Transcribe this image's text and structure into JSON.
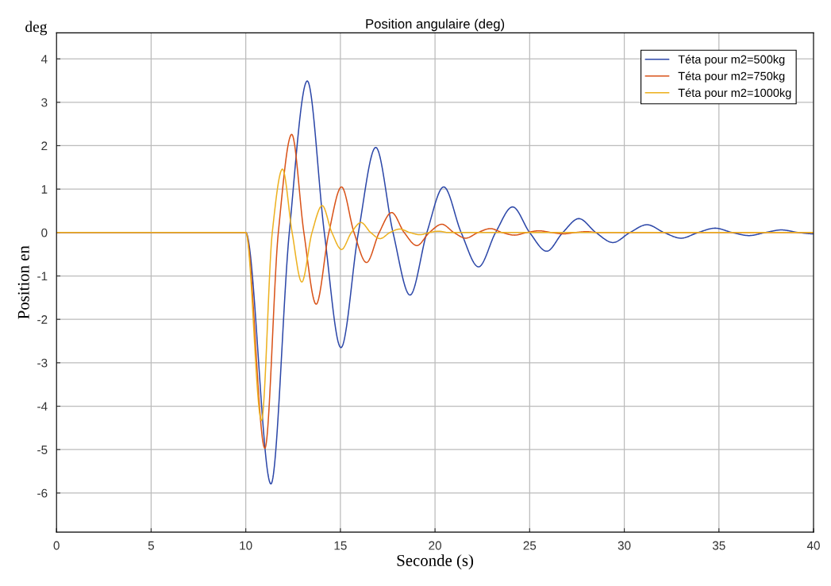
{
  "chart_data": {
    "type": "line",
    "title": "Position angulaire (deg)",
    "xlabel": "Seconde (s)",
    "ylabel": "Position en",
    "annotations": [
      "deg"
    ],
    "xlim": [
      0,
      40
    ],
    "xticks": [
      0,
      5,
      10,
      15,
      20,
      25,
      30,
      35,
      40
    ],
    "ylim": [
      -6.9,
      4.6
    ],
    "yticks": [
      -6,
      -5,
      -4,
      -3,
      -2,
      -1,
      0,
      1,
      2,
      3,
      4
    ],
    "grid": true,
    "legend": "top right",
    "marker": "none",
    "line_style": "solid",
    "series": [
      {
        "name": "Téta pour m2=500kg",
        "color": "#2c47a8",
        "x": [
          0,
          10,
          11.33,
          12.3,
          13.25,
          14.15,
          15.03,
          15.95,
          16.87,
          17.78,
          18.68,
          19.57,
          20.46,
          21.38,
          22.3,
          23.2,
          24.1,
          25.0,
          25.9,
          26.75,
          27.6,
          28.5,
          29.4,
          30.3,
          31.2,
          32.1,
          33.0,
          33.9,
          34.8,
          35.7,
          36.6,
          37.45,
          38.3,
          39.2,
          40
        ],
        "values": [
          0,
          0,
          -5.79,
          0,
          3.49,
          0,
          -2.65,
          0,
          1.96,
          0,
          -1.44,
          0,
          1.05,
          0,
          -0.79,
          0,
          0.59,
          0,
          -0.43,
          0,
          0.32,
          0,
          -0.23,
          0,
          0.18,
          0,
          -0.13,
          0,
          0.1,
          0,
          -0.07,
          0,
          0.06,
          0,
          -0.03
        ]
      },
      {
        "name": "Téta pour m2=750kg",
        "color": "#d95319",
        "x": [
          0,
          10,
          11.01,
          11.72,
          12.43,
          13.07,
          13.72,
          14.39,
          15.06,
          15.72,
          16.38,
          17.05,
          17.71,
          18.37,
          19.04,
          19.7,
          20.36,
          21.0,
          21.62,
          22.27,
          22.93,
          23.55,
          24.2,
          24.85,
          25.5,
          26.15,
          26.8,
          27.4,
          28.0,
          28.6,
          40
        ],
        "values": [
          0,
          0,
          -4.97,
          0,
          2.26,
          0,
          -1.65,
          0,
          1.05,
          0,
          -0.69,
          0,
          0.46,
          0,
          -0.3,
          0,
          0.19,
          0,
          -0.13,
          0,
          0.09,
          0,
          -0.06,
          0,
          0.04,
          0,
          -0.03,
          0,
          0.02,
          0,
          0
        ]
      },
      {
        "name": "Téta pour m2=1000kg",
        "color": "#edb120",
        "x": [
          0,
          10,
          10.83,
          11.4,
          11.94,
          12.45,
          12.96,
          13.5,
          14.04,
          14.55,
          15.06,
          15.58,
          16.09,
          16.6,
          17.1,
          17.62,
          18.14,
          18.67,
          19.2,
          19.7,
          20.2,
          20.7,
          40
        ],
        "values": [
          0,
          0,
          -4.33,
          0,
          1.46,
          0,
          -1.14,
          0,
          0.62,
          0,
          -0.39,
          0,
          0.23,
          0,
          -0.14,
          0,
          0.08,
          0,
          -0.05,
          0,
          0.03,
          0,
          0
        ]
      }
    ]
  }
}
